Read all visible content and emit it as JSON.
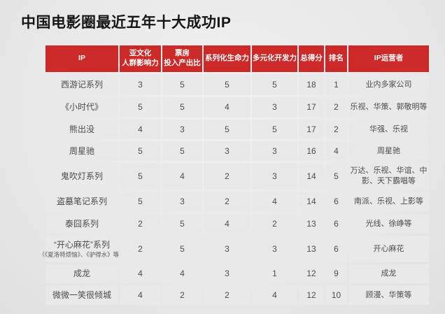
{
  "page": {
    "title": "中国电影圈最近五年十大成功IP"
  },
  "colors": {
    "header_red": "#cb2a28",
    "cell_gray": "#e9e9e9",
    "text_dark": "#4c4c4c",
    "header_text": "#ffffff"
  },
  "table": {
    "header": [
      {
        "lines": [
          "IP"
        ]
      },
      {
        "lines": [
          "亚文化",
          "人群影响力"
        ]
      },
      {
        "lines": [
          "票房",
          "投入产出比"
        ]
      },
      {
        "lines": [
          "系列化生命力"
        ]
      },
      {
        "lines": [
          "多元化开发力"
        ]
      },
      {
        "lines": [
          "总得分"
        ]
      },
      {
        "lines": [
          "排名"
        ]
      },
      {
        "lines": [
          "IP运营者"
        ]
      }
    ],
    "rows": [
      {
        "ip": "西游记系列",
        "ip_sub": "",
        "subculture": "3",
        "box_office": "5",
        "serialization": "5",
        "diversification": "5",
        "total": "18",
        "rank": "1",
        "operator": "业内多家公司"
      },
      {
        "ip": "《小时代》",
        "ip_sub": "",
        "subculture": "5",
        "box_office": "5",
        "serialization": "4",
        "diversification": "3",
        "total": "17",
        "rank": "2",
        "operator": "乐视、华策、郭敬明等"
      },
      {
        "ip": "熊出没",
        "ip_sub": "",
        "subculture": "4",
        "box_office": "3",
        "serialization": "5",
        "diversification": "5",
        "total": "17",
        "rank": "2",
        "operator": "华强、乐视"
      },
      {
        "ip": "周星驰",
        "ip_sub": "",
        "subculture": "5",
        "box_office": "5",
        "serialization": "3",
        "diversification": "3",
        "total": "16",
        "rank": "4",
        "operator": "周星驰"
      },
      {
        "ip": "鬼吹灯系列",
        "ip_sub": "",
        "subculture": "5",
        "box_office": "4",
        "serialization": "2",
        "diversification": "3",
        "total": "14",
        "rank": "5",
        "operator": "万达、乐视、华谊、中影、天下霸唱等"
      },
      {
        "ip": "盗墓笔记系列",
        "ip_sub": "",
        "subculture": "5",
        "box_office": "3",
        "serialization": "2",
        "diversification": "4",
        "total": "14",
        "rank": "6",
        "operator": "南派、乐视、上影等"
      },
      {
        "ip": "泰囧系列",
        "ip_sub": "",
        "subculture": "2",
        "box_office": "5",
        "serialization": "4",
        "diversification": "2",
        "total": "13",
        "rank": "6",
        "operator": "光线、徐峥等"
      },
      {
        "ip": "“开心麻花”系列",
        "ip_sub": "（《夏洛特烦恼》、《驴得水》等）",
        "subculture": "2",
        "box_office": "5",
        "serialization": "3",
        "diversification": "3",
        "total": "13",
        "rank": "6",
        "operator": "开心麻花"
      },
      {
        "ip": "成龙",
        "ip_sub": "",
        "subculture": "4",
        "box_office": "4",
        "serialization": "3",
        "diversification": "1",
        "total": "12",
        "rank": "9",
        "operator": "成龙"
      },
      {
        "ip": "微微一笑很倾城",
        "ip_sub": "",
        "subculture": "4",
        "box_office": "2",
        "serialization": "2",
        "diversification": "4",
        "total": "12",
        "rank": "10",
        "operator": "顾漫、华策等"
      }
    ]
  },
  "chart_data": {
    "type": "table",
    "title": "中国电影圈最近五年十大成功IP",
    "columns": [
      "IP",
      "亚文化人群影响力",
      "票房投入产出比",
      "系列化生命力",
      "多元化开发力",
      "总得分",
      "排名",
      "IP运营者"
    ],
    "rows": [
      [
        "西游记系列",
        3,
        5,
        5,
        5,
        18,
        1,
        "业内多家公司"
      ],
      [
        "《小时代》",
        5,
        5,
        4,
        3,
        17,
        2,
        "乐视、华策、郭敬明等"
      ],
      [
        "熊出没",
        4,
        3,
        5,
        5,
        17,
        2,
        "华强、乐视"
      ],
      [
        "周星驰",
        5,
        5,
        3,
        3,
        16,
        4,
        "周星驰"
      ],
      [
        "鬼吹灯系列",
        5,
        4,
        2,
        3,
        14,
        5,
        "万达、乐视、华谊、中影、天下霸唱等"
      ],
      [
        "盗墓笔记系列",
        5,
        3,
        2,
        4,
        14,
        6,
        "南派、乐视、上影等"
      ],
      [
        "泰囧系列",
        2,
        5,
        4,
        2,
        13,
        6,
        "光线、徐峥等"
      ],
      [
        "“开心麻花”系列（《夏洛特烦恼》、《驴得水》等）",
        2,
        5,
        3,
        3,
        13,
        6,
        "开心麻花"
      ],
      [
        "成龙",
        4,
        4,
        3,
        1,
        12,
        9,
        "成龙"
      ],
      [
        "微微一笑很倾城",
        4,
        2,
        2,
        4,
        12,
        10,
        "顾漫、华策等"
      ]
    ]
  }
}
